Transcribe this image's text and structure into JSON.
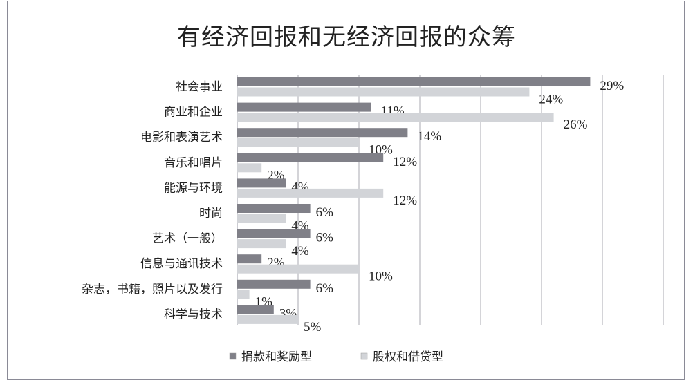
{
  "chart_data": {
    "type": "bar",
    "orientation": "horizontal",
    "title": "有经济回报和无经济回报的众筹",
    "categories": [
      "社会事业",
      "商业和企业",
      "电影和表演艺术",
      "音乐和唱片",
      "能源与环境",
      "时尚",
      "艺术（一般）",
      "信息与通讯技术",
      "杂志，书籍，照片以及发行",
      "科学与技术"
    ],
    "series": [
      {
        "name": "捐款和奖励型",
        "values": [
          29,
          11,
          14,
          12,
          4,
          6,
          6,
          2,
          6,
          3
        ],
        "color": "#808088"
      },
      {
        "name": "股权和借贷型",
        "values": [
          24,
          26,
          10,
          2,
          12,
          4,
          4,
          10,
          1,
          5
        ],
        "color": "#d2d4d8"
      }
    ],
    "value_suffix": "%",
    "xlim": [
      0,
      35
    ],
    "grid": true,
    "legend_position": "bottom"
  }
}
